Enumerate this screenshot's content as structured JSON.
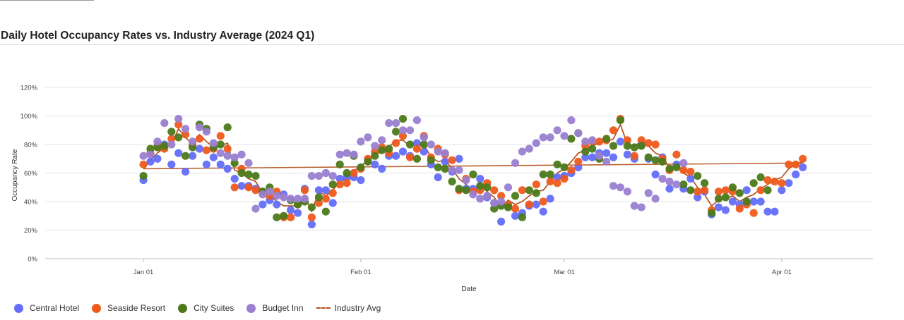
{
  "chart_data": {
    "type": "scatter",
    "title": "Daily Hotel Occupancy Rates vs. Industry Average (2024 Q1)",
    "xlabel": "Date",
    "ylabel": "Occupancy Rate",
    "x_ticks": [
      "Jan 01",
      "Feb 01",
      "Mar 01",
      "Apr 01"
    ],
    "y_ticks": [
      "0%",
      "20%",
      "40%",
      "60%",
      "80%",
      "100%",
      "120%"
    ],
    "xlim": [
      "2023-12-18",
      "2024-04-14"
    ],
    "ylim": [
      0,
      1.2
    ],
    "grid": true,
    "legend_position": "bottom-left",
    "series": [
      {
        "name": "Central Hotel",
        "kind": "scatter",
        "color": "#636efa",
        "values": [
          0.55,
          0.68,
          0.7,
          0.8,
          0.66,
          0.74,
          0.61,
          0.72,
          0.77,
          0.66,
          0.71,
          0.66,
          0.63,
          0.56,
          0.51,
          0.51,
          0.49,
          0.38,
          0.41,
          0.38,
          0.45,
          0.34,
          0.32,
          0.49,
          0.24,
          0.48,
          0.48,
          0.39,
          0.56,
          0.57,
          0.57,
          0.55,
          0.69,
          0.66,
          0.63,
          0.72,
          0.72,
          0.75,
          0.72,
          0.81,
          0.75,
          0.66,
          0.57,
          0.68,
          0.61,
          0.7,
          0.49,
          0.49,
          0.56,
          0.43,
          0.39,
          0.26,
          0.37,
          0.3,
          0.32,
          0.37,
          0.38,
          0.33,
          0.42,
          0.57,
          0.58,
          0.6,
          0.64,
          0.71,
          0.71,
          0.74,
          0.74,
          0.71,
          0.82,
          0.73,
          0.7,
          0.8,
          0.7,
          0.59,
          0.71,
          0.49,
          0.66,
          0.49,
          0.56,
          0.43,
          0.47,
          0.31,
          0.36,
          0.34,
          0.4,
          0.38,
          0.48,
          0.4,
          0.4,
          0.33,
          0.33,
          0.48,
          0.53,
          0.59,
          0.64
        ]
      },
      {
        "name": "Seaside Resort",
        "kind": "scatter",
        "color": "#ef5a1c",
        "values": [
          0.66,
          0.74,
          0.79,
          0.77,
          0.84,
          0.94,
          0.87,
          0.8,
          0.84,
          0.76,
          0.77,
          0.86,
          0.77,
          0.5,
          0.63,
          0.5,
          0.48,
          0.47,
          0.44,
          0.47,
          0.29,
          0.29,
          0.38,
          0.48,
          0.29,
          0.39,
          0.42,
          0.46,
          0.52,
          0.53,
          0.6,
          0.63,
          0.7,
          0.75,
          0.78,
          0.74,
          0.81,
          0.86,
          0.71,
          0.77,
          0.86,
          0.71,
          0.77,
          0.73,
          0.69,
          0.48,
          0.56,
          0.47,
          0.48,
          0.53,
          0.48,
          0.44,
          0.38,
          0.35,
          0.48,
          0.38,
          0.52,
          0.4,
          0.54,
          0.53,
          0.56,
          0.62,
          0.68,
          0.79,
          0.82,
          0.82,
          0.83,
          0.9,
          0.98,
          0.83,
          0.72,
          0.83,
          0.81,
          0.8,
          0.7,
          0.62,
          0.73,
          0.62,
          0.61,
          0.47,
          0.48,
          0.34,
          0.47,
          0.48,
          0.47,
          0.35,
          0.38,
          0.32,
          0.48,
          0.55,
          0.54,
          0.53,
          0.66,
          0.66,
          0.7
        ]
      },
      {
        "name": "City Suites",
        "kind": "scatter",
        "color": "#4c7a1a",
        "values": [
          0.58,
          0.77,
          0.78,
          0.79,
          0.89,
          0.85,
          0.72,
          0.78,
          0.94,
          0.91,
          0.78,
          0.8,
          0.92,
          0.67,
          0.6,
          0.59,
          0.58,
          0.47,
          0.5,
          0.29,
          0.3,
          0.41,
          0.38,
          0.4,
          0.36,
          0.43,
          0.33,
          0.52,
          0.66,
          0.6,
          0.72,
          0.64,
          0.68,
          0.72,
          0.76,
          0.77,
          0.89,
          0.98,
          0.8,
          0.7,
          0.8,
          0.69,
          0.64,
          0.63,
          0.54,
          0.49,
          0.48,
          0.59,
          0.51,
          0.5,
          0.35,
          0.37,
          0.36,
          0.44,
          0.29,
          0.48,
          0.46,
          0.59,
          0.59,
          0.66,
          0.64,
          0.84,
          0.88,
          0.75,
          0.77,
          0.7,
          0.84,
          0.79,
          0.97,
          0.79,
          0.78,
          0.79,
          0.71,
          0.69,
          0.68,
          0.63,
          0.64,
          0.52,
          0.48,
          0.58,
          0.53,
          0.32,
          0.42,
          0.43,
          0.5,
          0.46,
          0.4,
          0.53,
          0.57,
          0.48
        ]
      },
      {
        "name": "Budget Inn",
        "kind": "scatter",
        "color": "#9a7fd1",
        "values": [
          0.72,
          0.73,
          0.82,
          0.95,
          0.8,
          0.98,
          0.91,
          0.82,
          0.92,
          0.89,
          0.81,
          0.74,
          0.72,
          0.71,
          0.73,
          0.67,
          0.35,
          0.45,
          0.47,
          0.44,
          0.43,
          0.42,
          0.42,
          0.42,
          0.58,
          0.58,
          0.6,
          0.58,
          0.73,
          0.74,
          0.73,
          0.82,
          0.85,
          0.79,
          0.83,
          0.95,
          0.95,
          0.9,
          0.9,
          0.97,
          0.85,
          0.8,
          0.75,
          0.74,
          0.62,
          0.62,
          0.55,
          0.45,
          0.42,
          0.44,
          0.39,
          0.4,
          0.5,
          0.67,
          0.75,
          0.77,
          0.81,
          0.85,
          0.85,
          0.9,
          0.86,
          0.97,
          0.88,
          0.82,
          0.83,
          0.72,
          0.68,
          0.51,
          0.5,
          0.47,
          0.37,
          0.36,
          0.46,
          0.42,
          0.56,
          0.54,
          0.52,
          0.67
        ]
      },
      {
        "name": "Industry Avg",
        "kind": "line",
        "color": "#b4501c",
        "values": [
          0.63,
          0.69,
          0.74,
          0.78,
          0.8,
          0.91,
          0.85,
          0.8,
          0.87,
          0.82,
          0.78,
          0.79,
          0.81,
          0.62,
          0.6,
          0.56,
          0.54,
          0.46,
          0.45,
          0.4,
          0.37,
          0.37,
          0.37,
          0.44,
          0.33,
          0.47,
          0.44,
          0.48,
          0.54,
          0.56,
          0.62,
          0.64,
          0.7,
          0.73,
          0.75,
          0.78,
          0.83,
          0.83,
          0.79,
          0.8,
          0.8,
          0.71,
          0.68,
          0.69,
          0.63,
          0.56,
          0.52,
          0.48,
          0.53,
          0.47,
          0.43,
          0.36,
          0.41,
          0.38,
          0.4,
          0.44,
          0.47,
          0.48,
          0.54,
          0.6,
          0.63,
          0.68,
          0.74,
          0.76,
          0.79,
          0.81,
          0.82,
          0.84,
          0.94,
          0.8,
          0.79,
          0.82,
          0.79,
          0.74,
          0.72,
          0.63,
          0.67,
          0.6,
          0.57,
          0.5,
          0.45,
          0.37,
          0.41,
          0.42,
          0.44,
          0.4,
          0.43,
          0.45,
          0.49,
          0.52,
          0.55,
          0.57,
          0.63,
          0.66,
          0.68
        ]
      }
    ],
    "trend": {
      "name": "Industry Avg",
      "start": 0.63,
      "end": 0.67
    }
  }
}
